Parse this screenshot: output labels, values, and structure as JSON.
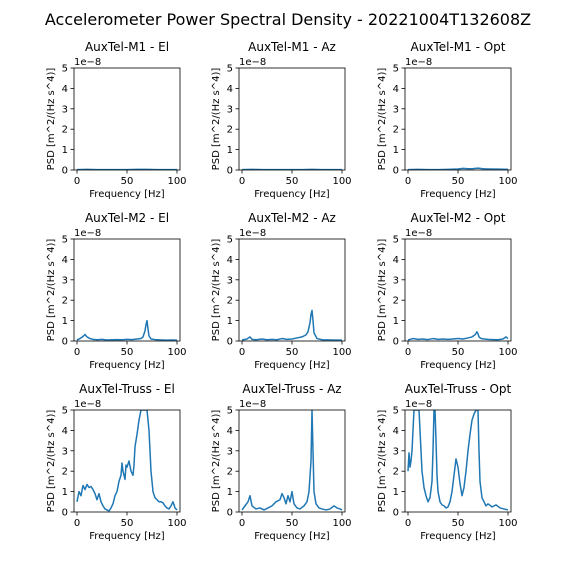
{
  "figure": {
    "title": "Accelerometer Power Spectral Density - 20221004T132608Z"
  },
  "colors": {
    "line": "#1f77b4",
    "axes": "#000000",
    "background": "#ffffff"
  },
  "chart_data": [
    {
      "type": "line",
      "title": "AuxTel-M1 - El",
      "xlabel": "Frequency [Hz]",
      "ylabel": "PSD [m^2/(Hz s^4)]",
      "xlim": [
        -3,
        103
      ],
      "ylim": [
        0,
        5
      ],
      "y_scale_label": "1e−8",
      "xticks": [
        0,
        50,
        100
      ],
      "yticks": [
        0,
        1,
        2,
        3,
        4,
        5
      ],
      "x": [
        0,
        10,
        20,
        30,
        40,
        50,
        60,
        70,
        80,
        90,
        100
      ],
      "y": [
        0.02,
        0.03,
        0.02,
        0.02,
        0.02,
        0.02,
        0.03,
        0.03,
        0.02,
        0.02,
        0.02
      ]
    },
    {
      "type": "line",
      "title": "AuxTel-M1 - Az",
      "xlabel": "Frequency [Hz]",
      "ylabel": "PSD [m^2/(Hz s^4)]",
      "xlim": [
        -3,
        103
      ],
      "ylim": [
        0,
        5
      ],
      "y_scale_label": "1e−8",
      "xticks": [
        0,
        50,
        100
      ],
      "yticks": [
        0,
        1,
        2,
        3,
        4,
        5
      ],
      "x": [
        0,
        10,
        20,
        30,
        40,
        50,
        60,
        70,
        80,
        90,
        100
      ],
      "y": [
        0.02,
        0.03,
        0.02,
        0.02,
        0.02,
        0.02,
        0.02,
        0.03,
        0.02,
        0.02,
        0.02
      ]
    },
    {
      "type": "line",
      "title": "AuxTel-M1 - Opt",
      "xlabel": "Frequency [Hz]",
      "ylabel": "PSD [m^2/(Hz s^4)]",
      "xlim": [
        -3,
        103
      ],
      "ylim": [
        0,
        5
      ],
      "y_scale_label": "1e−8",
      "xticks": [
        0,
        50,
        100
      ],
      "yticks": [
        0,
        1,
        2,
        3,
        4,
        5
      ],
      "x": [
        0,
        10,
        20,
        30,
        40,
        50,
        55,
        60,
        65,
        70,
        75,
        80,
        90,
        100
      ],
      "y": [
        0.02,
        0.03,
        0.02,
        0.02,
        0.03,
        0.05,
        0.08,
        0.06,
        0.07,
        0.09,
        0.06,
        0.05,
        0.04,
        0.03
      ]
    },
    {
      "type": "line",
      "title": "AuxTel-M2 - El",
      "xlabel": "Frequency [Hz]",
      "ylabel": "PSD [m^2/(Hz s^4)]",
      "xlim": [
        -3,
        103
      ],
      "ylim": [
        0,
        5
      ],
      "y_scale_label": "1e−8",
      "xticks": [
        0,
        50,
        100
      ],
      "yticks": [
        0,
        1,
        2,
        3,
        4,
        5
      ],
      "x": [
        0,
        3,
        6,
        8,
        10,
        13,
        16,
        20,
        25,
        30,
        35,
        40,
        45,
        50,
        55,
        60,
        64,
        66,
        68,
        69,
        70,
        71,
        72,
        74,
        78,
        85,
        90,
        95,
        100
      ],
      "y": [
        0.05,
        0.12,
        0.22,
        0.32,
        0.2,
        0.12,
        0.08,
        0.06,
        0.08,
        0.05,
        0.06,
        0.07,
        0.06,
        0.08,
        0.07,
        0.1,
        0.12,
        0.2,
        0.5,
        0.8,
        1.0,
        0.6,
        0.25,
        0.1,
        0.07,
        0.05,
        0.04,
        0.05,
        0.04
      ]
    },
    {
      "type": "line",
      "title": "AuxTel-M2 - Az",
      "xlabel": "Frequency [Hz]",
      "ylabel": "PSD [m^2/(Hz s^4)]",
      "xlim": [
        -3,
        103
      ],
      "ylim": [
        0,
        5
      ],
      "y_scale_label": "1e−8",
      "xticks": [
        0,
        50,
        100
      ],
      "yticks": [
        0,
        1,
        2,
        3,
        4,
        5
      ],
      "x": [
        0,
        5,
        8,
        10,
        14,
        20,
        25,
        30,
        35,
        40,
        45,
        50,
        55,
        60,
        64,
        66,
        68,
        69,
        70,
        71,
        72,
        75,
        80,
        90,
        100
      ],
      "y": [
        0.05,
        0.1,
        0.2,
        0.08,
        0.06,
        0.1,
        0.06,
        0.08,
        0.06,
        0.12,
        0.08,
        0.1,
        0.15,
        0.2,
        0.3,
        0.45,
        0.9,
        1.3,
        1.5,
        1.0,
        0.4,
        0.12,
        0.06,
        0.05,
        0.04
      ]
    },
    {
      "type": "line",
      "title": "AuxTel-M2 - Opt",
      "xlabel": "Frequency [Hz]",
      "ylabel": "PSD [m^2/(Hz s^4)]",
      "xlim": [
        -3,
        103
      ],
      "ylim": [
        0,
        5
      ],
      "y_scale_label": "1e−8",
      "xticks": [
        0,
        50,
        100
      ],
      "yticks": [
        0,
        1,
        2,
        3,
        4,
        5
      ],
      "x": [
        0,
        5,
        10,
        15,
        20,
        25,
        30,
        35,
        40,
        45,
        50,
        55,
        60,
        64,
        67,
        69,
        70,
        71,
        73,
        76,
        80,
        85,
        90,
        95,
        98,
        100
      ],
      "y": [
        0.05,
        0.12,
        0.08,
        0.1,
        0.07,
        0.12,
        0.08,
        0.1,
        0.08,
        0.1,
        0.12,
        0.1,
        0.15,
        0.2,
        0.3,
        0.45,
        0.35,
        0.2,
        0.12,
        0.1,
        0.08,
        0.07,
        0.06,
        0.1,
        0.2,
        0.12
      ]
    },
    {
      "type": "line",
      "title": "AuxTel-Truss - El",
      "xlabel": "Frequency [Hz]",
      "ylabel": "PSD [m^2/(Hz s^4)]",
      "xlim": [
        -3,
        103
      ],
      "ylim": [
        0,
        5
      ],
      "y_scale_label": "1e−8",
      "xticks": [
        0,
        50,
        100
      ],
      "yticks": [
        0,
        1,
        2,
        3,
        4,
        5
      ],
      "x": [
        0,
        2,
        4,
        6,
        8,
        10,
        12,
        14,
        16,
        18,
        20,
        22,
        24,
        26,
        28,
        30,
        32,
        34,
        36,
        38,
        40,
        42,
        44,
        45,
        46,
        48,
        49,
        50,
        52,
        54,
        56,
        57,
        58,
        60,
        62,
        64,
        66,
        68,
        70,
        72,
        74,
        76,
        78,
        80,
        82,
        84,
        86,
        88,
        90,
        92,
        94,
        96,
        98,
        100
      ],
      "y": [
        0.5,
        1.0,
        0.8,
        1.3,
        1.1,
        1.35,
        1.2,
        1.25,
        1.1,
        0.9,
        0.6,
        0.9,
        0.5,
        0.3,
        0.15,
        0.1,
        0.05,
        0.2,
        0.4,
        0.8,
        1.0,
        1.5,
        1.8,
        2.4,
        2.0,
        1.6,
        2.3,
        2.2,
        2.5,
        2.0,
        1.8,
        2.3,
        3.2,
        3.8,
        4.5,
        5.0,
        5.0,
        5.0,
        5.0,
        4.0,
        2.0,
        1.0,
        0.7,
        0.6,
        0.5,
        0.5,
        0.45,
        0.3,
        0.2,
        0.15,
        0.3,
        0.5,
        0.2,
        0.1
      ]
    },
    {
      "type": "line",
      "title": "AuxTel-Truss - Az",
      "xlabel": "Frequency [Hz]",
      "ylabel": "PSD [m^2/(Hz s^4)]",
      "xlim": [
        -3,
        103
      ],
      "ylim": [
        0,
        5
      ],
      "y_scale_label": "1e−8",
      "xticks": [
        0,
        50,
        100
      ],
      "yticks": [
        0,
        1,
        2,
        3,
        4,
        5
      ],
      "x": [
        0,
        3,
        6,
        8,
        10,
        14,
        18,
        22,
        26,
        30,
        34,
        38,
        40,
        42,
        44,
        46,
        48,
        50,
        52,
        55,
        58,
        62,
        65,
        67,
        69,
        70,
        71,
        72,
        74,
        77,
        80,
        84,
        88,
        92,
        95,
        98,
        100
      ],
      "y": [
        0.1,
        0.3,
        0.5,
        0.8,
        0.3,
        0.15,
        0.2,
        0.1,
        0.2,
        0.3,
        0.5,
        0.6,
        0.9,
        0.7,
        0.4,
        0.8,
        0.5,
        1.0,
        0.4,
        0.2,
        0.15,
        0.3,
        0.5,
        1.0,
        2.5,
        5.0,
        3.0,
        1.0,
        0.4,
        0.2,
        0.15,
        0.1,
        0.15,
        0.3,
        0.2,
        0.15,
        0.1
      ]
    },
    {
      "type": "line",
      "title": "AuxTel-Truss - Opt",
      "xlabel": "Frequency [Hz]",
      "ylabel": "PSD [m^2/(Hz s^4)]",
      "xlim": [
        -3,
        103
      ],
      "ylim": [
        0,
        5
      ],
      "y_scale_label": "1e−8",
      "xticks": [
        0,
        50,
        100
      ],
      "yticks": [
        0,
        1,
        2,
        3,
        4,
        5
      ],
      "x": [
        0,
        1,
        2,
        3,
        4,
        5,
        6,
        7,
        8,
        9,
        10,
        11,
        12,
        13,
        14,
        16,
        18,
        20,
        22,
        24,
        25,
        26,
        27,
        28,
        29,
        30,
        32,
        34,
        36,
        38,
        40,
        42,
        44,
        46,
        48,
        50,
        52,
        54,
        56,
        58,
        60,
        62,
        64,
        66,
        68,
        70,
        71,
        72,
        74,
        76,
        78,
        80,
        84,
        88,
        92,
        96,
        100
      ],
      "y": [
        2.0,
        2.9,
        2.2,
        2.5,
        3.0,
        4.0,
        5.0,
        5.0,
        5.0,
        5.0,
        5.0,
        5.0,
        4.0,
        3.0,
        2.0,
        1.2,
        0.8,
        0.5,
        0.7,
        1.5,
        3.0,
        5.0,
        5.0,
        3.5,
        1.8,
        1.0,
        0.5,
        0.35,
        0.3,
        0.2,
        0.25,
        0.5,
        1.0,
        1.8,
        2.6,
        2.2,
        1.4,
        0.8,
        1.2,
        2.0,
        3.0,
        3.8,
        4.5,
        4.8,
        5.0,
        5.0,
        3.0,
        1.5,
        0.7,
        0.5,
        0.3,
        0.4,
        0.25,
        0.35,
        0.2,
        0.15,
        0.1
      ]
    }
  ]
}
